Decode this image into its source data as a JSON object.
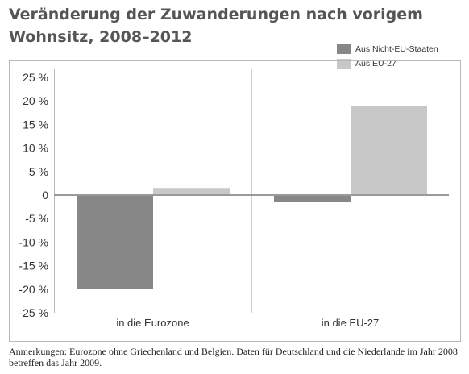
{
  "title": "Veränderung der Zuwanderungen nach vorigem Wohnsitz, 2008–2012",
  "note": "Anmerkungen: Eurozone ohne Griechenland und Belgien. Daten für Deutschland und die Niederlande im Jahr 2008 betreffen das Jahr 2009.",
  "colors": {
    "nicht_eu": "#878787",
    "eu27": "#c8c8c8",
    "frame": "#b9b9b9",
    "zero_line": "#9a9a9a",
    "text": "#333333"
  },
  "chart_data": {
    "type": "bar",
    "title": "Veränderung der Zuwanderungen nach vorigem Wohnsitz, 2008–2012",
    "xlabel": "",
    "ylabel": "",
    "ylim": [
      -25,
      25
    ],
    "categories": [
      "in die Eurozone",
      "in die EU-27"
    ],
    "y_ticks": [
      25,
      20,
      15,
      10,
      5,
      0,
      -5,
      -10,
      -15,
      -20,
      -25
    ],
    "y_tick_labels": [
      "25 %",
      "20 %",
      "15 %",
      "10 %",
      "5 %",
      "0",
      "-5 %",
      "-10 %",
      "-15 %",
      "-20 %",
      "-25 %"
    ],
    "grid": false,
    "legend_position": "top-right",
    "series": [
      {
        "name": "Aus Nicht-EU-Staaten",
        "values": [
          -20,
          -1.5
        ],
        "color": "#878787"
      },
      {
        "name": "Aus EU-27",
        "values": [
          1.5,
          19
        ],
        "color": "#c8c8c8"
      }
    ]
  }
}
